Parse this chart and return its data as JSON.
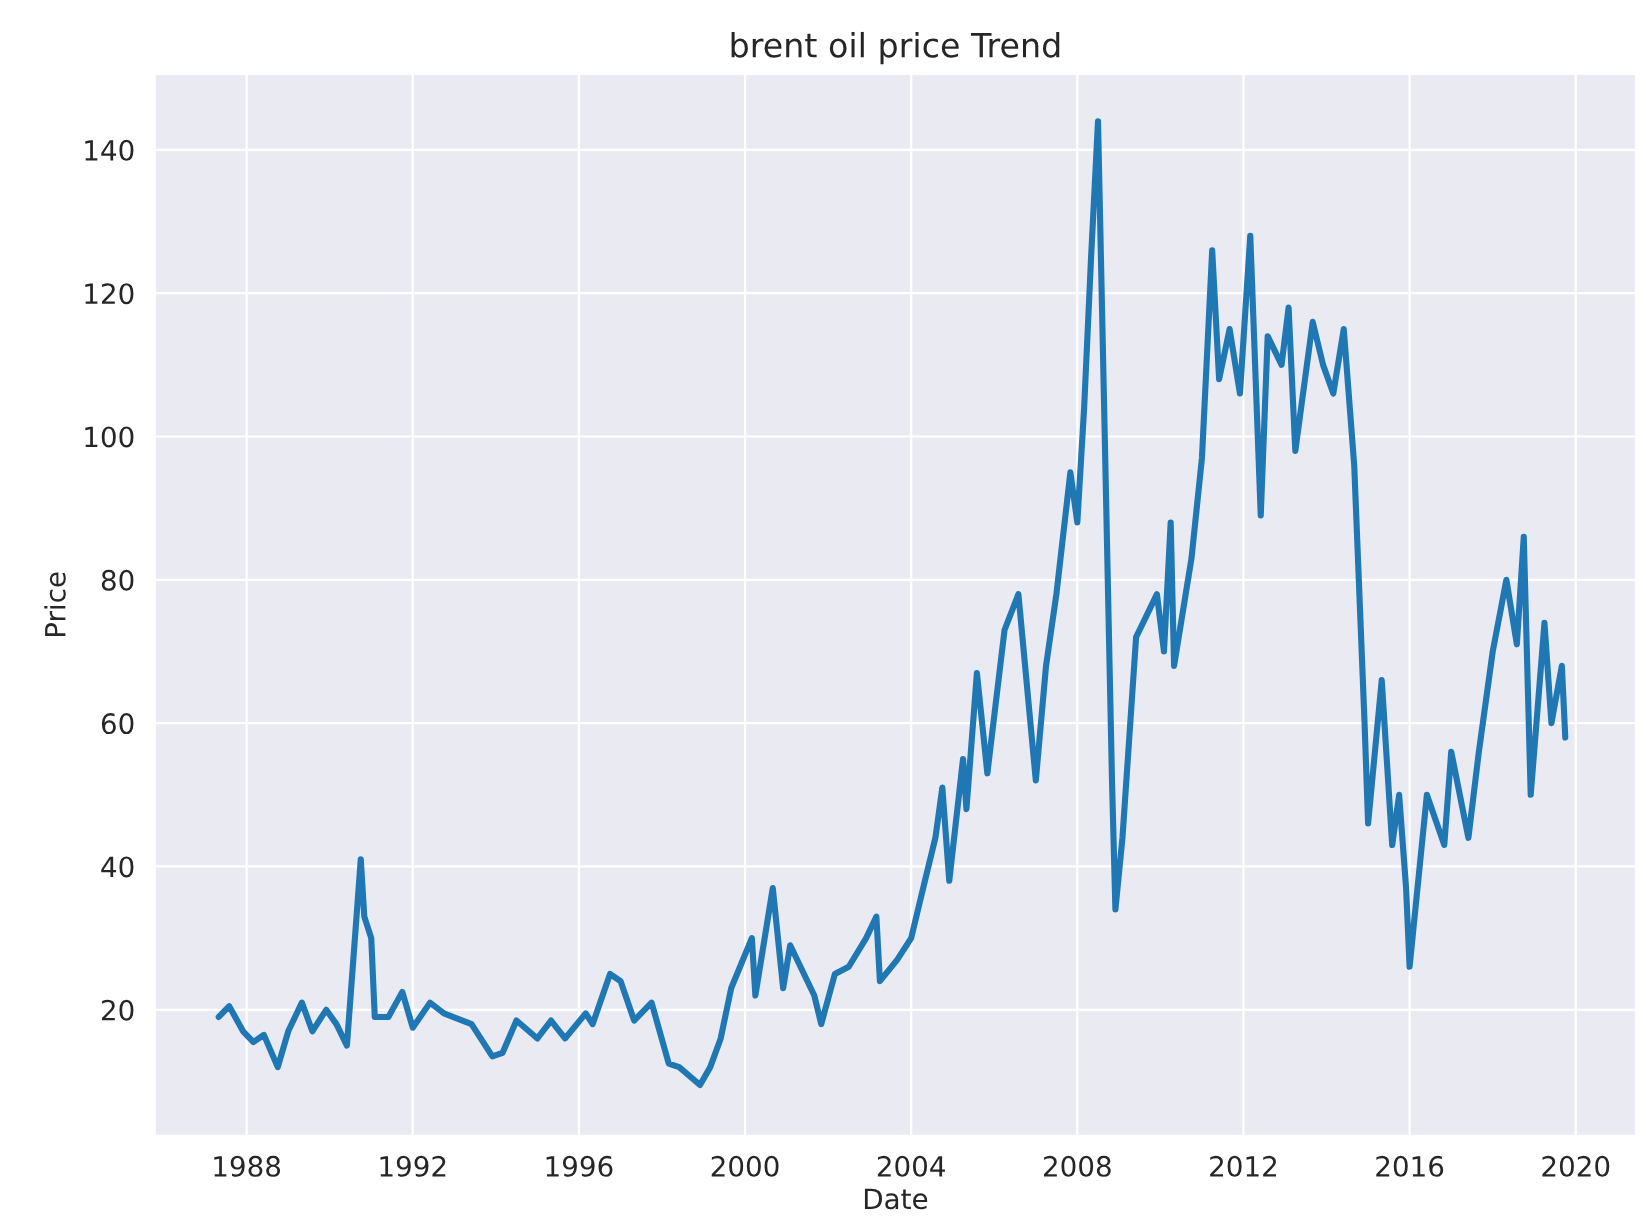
{
  "chart_data": {
    "type": "line",
    "title": "brent oil price Trend",
    "xlabel": "Date",
    "ylabel": "Price",
    "x": [
      "1987-05",
      "1987-08",
      "1987-12",
      "1988-03",
      "1988-06",
      "1988-10",
      "1989-01",
      "1989-05",
      "1989-08",
      "1989-12",
      "1990-03",
      "1990-06",
      "1990-08",
      "1990-10",
      "1990-11",
      "1991-01",
      "1991-02",
      "1991-06",
      "1991-10",
      "1992-01",
      "1992-06",
      "1992-10",
      "1993-06",
      "1993-12",
      "1994-03",
      "1994-07",
      "1995-01",
      "1995-05",
      "1995-09",
      "1996-03",
      "1996-05",
      "1996-10",
      "1997-01",
      "1997-05",
      "1997-10",
      "1998-03",
      "1998-06",
      "1998-12",
      "1999-03",
      "1999-06",
      "1999-09",
      "2000-03",
      "2000-04",
      "2000-09",
      "2000-12",
      "2001-02",
      "2001-09",
      "2001-11",
      "2002-03",
      "2002-07",
      "2002-12",
      "2003-03",
      "2003-04",
      "2003-09",
      "2004-01",
      "2004-05",
      "2004-08",
      "2004-10",
      "2004-12",
      "2005-04",
      "2005-05",
      "2005-08",
      "2005-11",
      "2006-04",
      "2006-08",
      "2007-01",
      "2007-04",
      "2007-07",
      "2007-11",
      "2008-01",
      "2008-03",
      "2008-05",
      "2008-07",
      "2008-09",
      "2008-11",
      "2008-12",
      "2009-02",
      "2009-06",
      "2009-08",
      "2009-12",
      "2010-02",
      "2010-04",
      "2010-05",
      "2010-10",
      "2011-01",
      "2011-04",
      "2011-06",
      "2011-09",
      "2011-12",
      "2012-03",
      "2012-06",
      "2012-08",
      "2012-12",
      "2013-02",
      "2013-04",
      "2013-09",
      "2013-12",
      "2014-03",
      "2014-06",
      "2014-09",
      "2014-12",
      "2015-01",
      "2015-05",
      "2015-08",
      "2015-10",
      "2015-12",
      "2016-01",
      "2016-06",
      "2016-11",
      "2017-01",
      "2017-06",
      "2017-09",
      "2018-01",
      "2018-05",
      "2018-08",
      "2018-10",
      "2018-12",
      "2019-04",
      "2019-06",
      "2019-09",
      "2019-10"
    ],
    "series": [
      {
        "color": "#1f77b4",
        "values": [
          19,
          20.5,
          17,
          15.5,
          16.5,
          12,
          17,
          21,
          17,
          20,
          18,
          15,
          28,
          41,
          33,
          30,
          19,
          19,
          22.5,
          17.5,
          21,
          19.5,
          18,
          13.5,
          14,
          18.5,
          16,
          18.5,
          16,
          19.5,
          18,
          25,
          24,
          18.5,
          21,
          12.5,
          12,
          9.5,
          12,
          16,
          23,
          30,
          22,
          37,
          23,
          29,
          22,
          18,
          25,
          26,
          30,
          33,
          24,
          27,
          30,
          38,
          44,
          51,
          38,
          55,
          48,
          67,
          53,
          73,
          78,
          52,
          68,
          78,
          95,
          88,
          104,
          125,
          144,
          98,
          52,
          34,
          44,
          72,
          74,
          78,
          70,
          88,
          68,
          83,
          97,
          126,
          108,
          115,
          106,
          128,
          89,
          114,
          110,
          118,
          98,
          116,
          110,
          106,
          115,
          96,
          60,
          46,
          66,
          43,
          50,
          37,
          26,
          50,
          43,
          56,
          44,
          56,
          70,
          80,
          71,
          86,
          50,
          74,
          60,
          68,
          58
        ]
      }
    ],
    "xlim": [
      "1985-10-15",
      "2021-06-15"
    ],
    "xticks": [
      "1988",
      "1992",
      "1996",
      "2000",
      "2004",
      "2008",
      "2012",
      "2016",
      "2020"
    ],
    "ylim": [
      2.4,
      150.6
    ],
    "yticks": [
      20,
      40,
      60,
      80,
      100,
      120,
      140
    ],
    "grid": true,
    "line_style": "solid",
    "marker": "none"
  }
}
